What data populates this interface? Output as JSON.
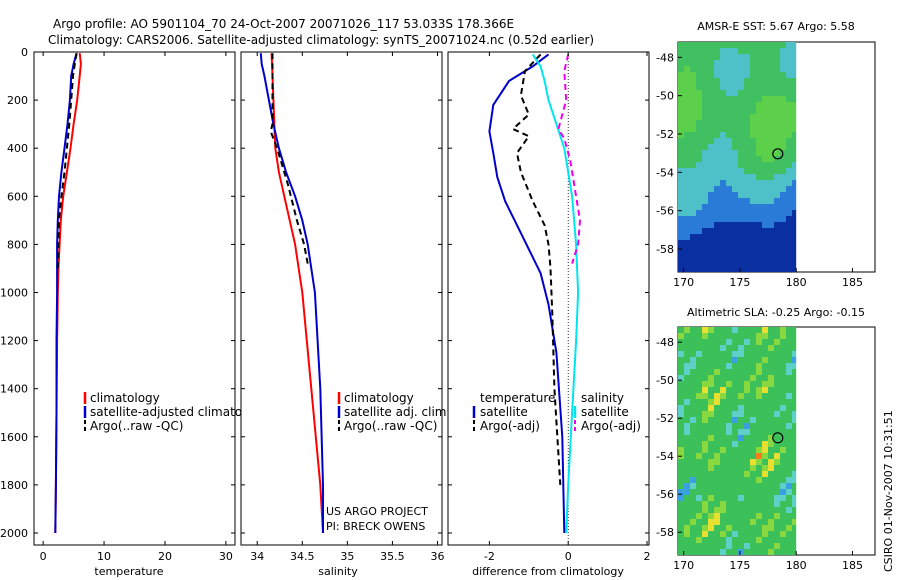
{
  "header": {
    "line1": "Argo profile: AO 5901104_70 24-Oct-2007 20071026_117 53.033S 178.366E",
    "line2": "Climatology: CARS2006. Satellite-adjusted climatology: synTS_20071024.nc (0.52d earlier)"
  },
  "side_stamp": "CSIRO 01-Nov-2007 10:31:51",
  "project_credit": [
    "US ARGO PROJECT",
    "PI: BRECK OWENS"
  ],
  "colors": {
    "climatology": "#ff0000",
    "satellite": "#0000cc",
    "argo": "#000000",
    "salinity_satellite": "#00e5ee",
    "salinity_argo": "#ee00ee"
  },
  "chart_data": [
    {
      "type": "line",
      "xlabel": "temperature",
      "xticks": [
        0,
        10,
        20,
        30
      ],
      "xlim": [
        -1.5,
        31.5
      ],
      "ylim": [
        0,
        2050
      ],
      "yticks": [
        0,
        200,
        400,
        600,
        800,
        1000,
        1200,
        1400,
        1600,
        1800,
        2000
      ],
      "y_reversed": true,
      "legend": [
        "climatology",
        "satellite-adjusted climatolog",
        "Argo(..raw -QC)"
      ],
      "series": [
        {
          "name": "climatology",
          "color": "#ff0000",
          "style": "solid",
          "x": [
            6.0,
            6.2,
            6.0,
            5.6,
            5.0,
            4.5,
            3.9,
            3.3,
            2.9,
            2.7,
            2.5,
            2.4,
            2.3,
            2.2,
            2.1,
            2.0
          ],
          "y": [
            5,
            50,
            100,
            200,
            300,
            400,
            500,
            600,
            700,
            800,
            900,
            1000,
            1200,
            1500,
            1800,
            2000
          ]
        },
        {
          "name": "satellite-adjusted climatolog",
          "color": "#0000cc",
          "style": "solid",
          "x": [
            5.5,
            5.0,
            4.6,
            4.4,
            4.0,
            3.5,
            3.0,
            2.6,
            2.4,
            2.3,
            2.3,
            2.3,
            2.2,
            2.2,
            2.1,
            2.0
          ],
          "y": [
            5,
            50,
            100,
            200,
            300,
            400,
            500,
            600,
            700,
            800,
            900,
            1000,
            1200,
            1500,
            1800,
            2000
          ]
        },
        {
          "name": "Argo(..raw -QC)",
          "color": "#000000",
          "style": "dashed",
          "x": [
            5.5,
            5.2,
            4.9,
            4.6,
            4.3,
            3.9,
            3.5,
            3.0,
            2.6,
            2.5,
            2.4
          ],
          "y": [
            5,
            50,
            100,
            200,
            300,
            400,
            500,
            600,
            700,
            800,
            900
          ]
        }
      ]
    },
    {
      "type": "line",
      "xlabel": "salinity",
      "xticks": [
        34,
        34.5,
        35,
        35.5,
        36
      ],
      "xlim": [
        33.82,
        36.05
      ],
      "ylim": [
        0,
        2050
      ],
      "y_reversed": true,
      "legend": [
        "climatology",
        "satellite adj. clim.",
        "Argo(..raw -QC)"
      ],
      "series": [
        {
          "name": "climatology",
          "color": "#ff0000",
          "style": "solid",
          "x": [
            34.16,
            34.17,
            34.18,
            34.19,
            34.2,
            34.24,
            34.3,
            34.36,
            34.42,
            34.5,
            34.6,
            34.7,
            34.73
          ],
          "y": [
            5,
            100,
            200,
            300,
            400,
            500,
            600,
            700,
            800,
            1000,
            1400,
            1800,
            2000
          ]
        },
        {
          "name": "satellite adj. clim.",
          "color": "#0000cc",
          "style": "solid",
          "x": [
            34.04,
            34.05,
            34.08,
            34.13,
            34.18,
            34.24,
            34.32,
            34.42,
            34.5,
            34.56,
            34.64,
            34.7,
            34.73,
            34.73
          ],
          "y": [
            5,
            50,
            100,
            200,
            300,
            400,
            500,
            600,
            700,
            800,
            1000,
            1400,
            1800,
            2000
          ]
        },
        {
          "name": "Argo(..raw -QC)",
          "color": "#000000",
          "style": "dashed",
          "x": [
            34.17,
            34.17,
            34.17,
            34.17,
            34.15,
            34.22,
            34.34,
            34.44,
            34.52,
            34.56
          ],
          "y": [
            5,
            100,
            200,
            300,
            330,
            400,
            550,
            700,
            800,
            880
          ]
        }
      ]
    },
    {
      "type": "line",
      "xlabel": "difference from climatology",
      "xticks": [
        -2,
        0,
        2
      ],
      "xlim": [
        -3.05,
        2.05
      ],
      "ylim": [
        0,
        2050
      ],
      "y_reversed": true,
      "zero_line": true,
      "legend_groups": [
        {
          "title": "temperature",
          "entries": [
            "satellite",
            "Argo(-adj)"
          ]
        },
        {
          "title": "salinity",
          "entries": [
            "satellite",
            "Argo(-adj)"
          ]
        }
      ],
      "series": [
        {
          "name": "temperature satellite",
          "color": "#0000cc",
          "style": "solid",
          "x": [
            -0.5,
            -0.9,
            -1.5,
            -1.9,
            -2.0,
            -1.9,
            -1.8,
            -1.6,
            -1.3,
            -1.0,
            -0.7,
            -0.5,
            -0.3,
            -0.15,
            -0.1
          ],
          "y": [
            10,
            60,
            120,
            220,
            330,
            420,
            520,
            620,
            720,
            820,
            920,
            1050,
            1250,
            1600,
            2000
          ]
        },
        {
          "name": "temperature Argo(-adj)",
          "color": "#000000",
          "style": "dashed",
          "x": [
            -0.7,
            -1.1,
            -1.2,
            -1.0,
            -1.4,
            -1.0,
            -1.3,
            -1.2,
            -0.9,
            -0.6,
            -0.5,
            -0.45,
            -0.4,
            -0.35,
            -0.2
          ],
          "y": [
            10,
            80,
            180,
            260,
            320,
            350,
            420,
            500,
            620,
            720,
            800,
            900,
            1100,
            1400,
            1800
          ]
        },
        {
          "name": "salinity satellite",
          "color": "#00e5ee",
          "style": "solid",
          "x": [
            -0.9,
            -0.7,
            -0.6,
            -0.5,
            -0.3,
            -0.1,
            0.1,
            0.2,
            0.25,
            0.2,
            0.1,
            0.0,
            -0.05
          ],
          "y": [
            10,
            60,
            120,
            200,
            300,
            400,
            600,
            800,
            1000,
            1200,
            1500,
            1800,
            2000
          ]
        },
        {
          "name": "salinity Argo(-adj)",
          "color": "#ee00ee",
          "style": "dashed",
          "x": [
            0.0,
            -0.1,
            -0.05,
            -0.25,
            -0.1,
            0.05,
            0.2,
            0.3,
            0.25,
            0.1
          ],
          "y": [
            10,
            80,
            200,
            320,
            360,
            450,
            600,
            700,
            800,
            880
          ]
        }
      ]
    },
    {
      "type": "heatmap",
      "title": "AMSR-E SST: 5.67 Argo: 5.58",
      "xticks": [
        170,
        175,
        180,
        185
      ],
      "yticks": [
        -48,
        -50,
        -52,
        -54,
        -56,
        -58
      ],
      "xlim": [
        169.5,
        187
      ],
      "ylim": [
        -59.2,
        -47.2
      ],
      "data_xlim": [
        169.5,
        180
      ],
      "profile_location": {
        "lon": 178.366,
        "lat": -53.033
      }
    },
    {
      "type": "heatmap",
      "title": "Altimetric SLA: -0.25 Argo: -0.15",
      "xticks": [
        170,
        175,
        180,
        185
      ],
      "yticks": [
        -48,
        -50,
        -52,
        -54,
        -56,
        -58
      ],
      "xlim": [
        169.5,
        187
      ],
      "ylim": [
        -59.2,
        -47.2
      ],
      "data_xlim": [
        169.5,
        180
      ],
      "profile_location": {
        "lon": 178.366,
        "lat": -53.033
      }
    }
  ]
}
